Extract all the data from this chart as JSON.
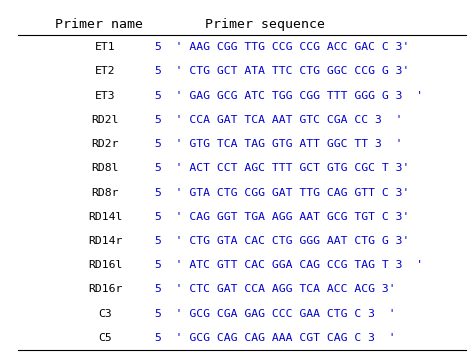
{
  "title_left": "Primer name",
  "title_right": "Primer sequence",
  "rows": [
    [
      "ET1",
      "5  ' AAG CGG TTG CCG CCG ACC GAC C 3'"
    ],
    [
      "ET2",
      "5  ' CTG GCT ATA TTC CTG GGC CCG G 3'"
    ],
    [
      "ET3",
      "5  ' GAG GCG ATC TGG CGG TTT GGG G 3  '"
    ],
    [
      "RD2l",
      "5  ' CCA GAT TCA AAT GTC CGA CC 3  '"
    ],
    [
      "RD2r",
      "5  ' GTG TCA TAG GTG ATT GGC TT 3  '"
    ],
    [
      "RD8l",
      "5  ' ACT CCT AGC TTT GCT GTG CGC T 3'"
    ],
    [
      "RD8r",
      "5  ' GTA CTG CGG GAT TTG CAG GTT C 3'"
    ],
    [
      "RD14l",
      "5  ' CAG GGT TGA AGG AAT GCG TGT C 3'"
    ],
    [
      "RD14r",
      "5  ' CTG GTA CAC CTG GGG AAT CTG G 3'"
    ],
    [
      "RD16l",
      "5  ' ATC GTT CAC GGA CAG CCG TAG T 3  '"
    ],
    [
      "RD16r",
      "5  ' CTC GAT CCA AGG TCA ACC ACG 3'"
    ],
    [
      "C3",
      "5  ' GCG CGA GAG CCC GAA CTG C 3  '"
    ],
    [
      "C5",
      "5  ' GCG CAG CAG AAA CGT CAG C 3  '"
    ]
  ],
  "bg_color": "#ffffff",
  "header_color": "#000000",
  "name_color": "#000000",
  "seq_color": "#0000cc",
  "font_family": "monospace",
  "header_fontsize": 9.5,
  "row_fontsize": 8.2,
  "fig_width": 4.76,
  "fig_height": 3.58,
  "dpi": 100
}
